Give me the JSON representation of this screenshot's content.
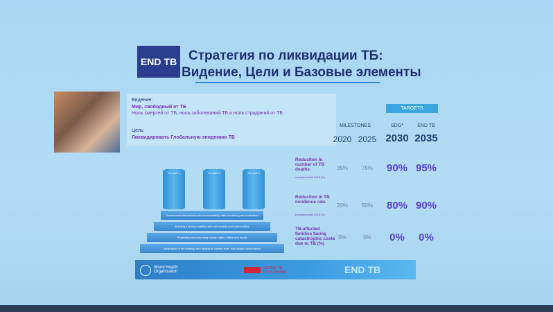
{
  "logo": "END TB",
  "title": {
    "line1": "Стратегия по ликвидации ТБ:",
    "line2": "Видение, Цели и Базовые элементы"
  },
  "vision": {
    "label": "Видение:",
    "headline": "Мир, свободный от ТБ",
    "text": "Ноль смертей от ТБ, ноль заболеваний ТБ и ноль страданий от ТБ"
  },
  "goal": {
    "label": "Цель:",
    "text": "Ликвидировать Глобальную эпидемию ТБ"
  },
  "table": {
    "targets_header": "TARGETS",
    "milestones_header": "MILESTONES",
    "target_groups": [
      "SDG*",
      "END TB"
    ],
    "years": [
      "2020",
      "2025",
      "2030",
      "2035"
    ],
    "rows": [
      {
        "label": "Reduction in number of TB deaths",
        "note": "compared with 2015 (%)",
        "values": [
          "35%",
          "75%",
          "90%",
          "95%"
        ]
      },
      {
        "label": "Reduction in TB incidence rate",
        "note": "compared with 2015 (%)",
        "values": [
          "20%",
          "50%",
          "80%",
          "90%"
        ]
      },
      {
        "label": "TB-affected families facing catastrophic costs due to TB (%)",
        "values": [
          "0%",
          "0%",
          "0%",
          "0%"
        ]
      }
    ]
  },
  "pillars": [
    "PILLAR 1",
    "PILLAR 2",
    "PILLAR 3"
  ],
  "principles": [
    "Government stewardship and accountability, with monitoring and evaluation",
    "Building a strong coalition with civil society and communities",
    "Protecting and promoting human rights, ethics and equity",
    "Adaptation of the strategy and targets at country level, with global collaboration"
  ],
  "footer": {
    "who": "World Health Organization",
    "programme": "GLOBAL TB PROGRAMME",
    "logo": "END TB"
  }
}
